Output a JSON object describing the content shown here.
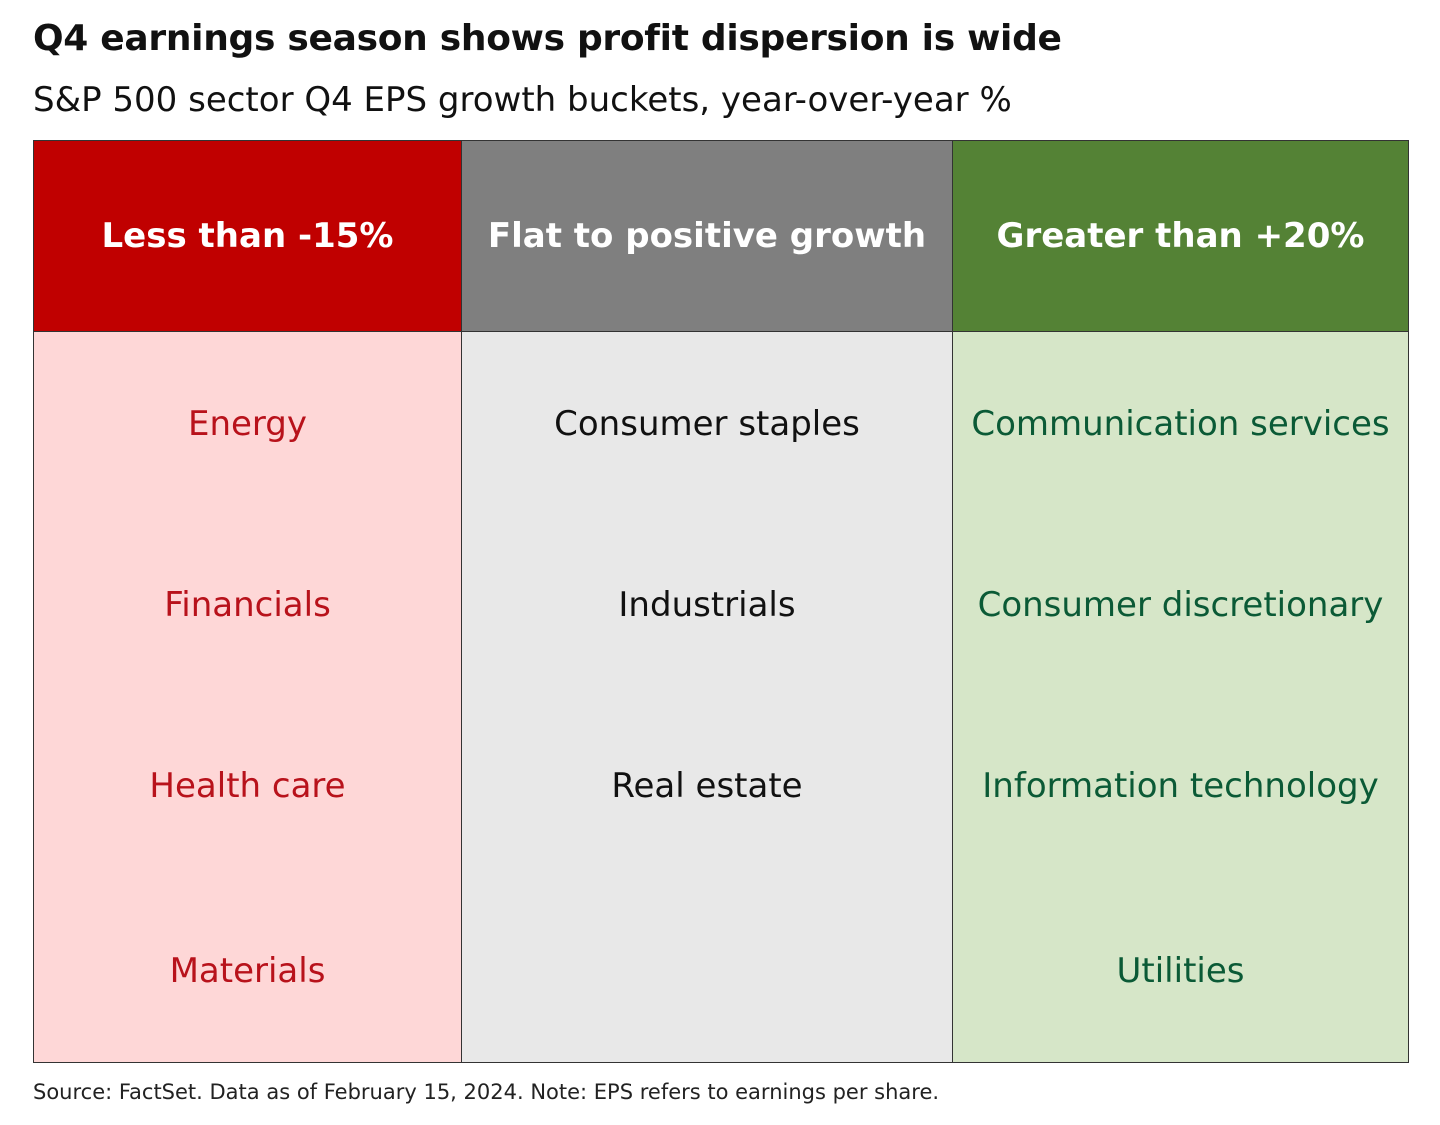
{
  "title": "Q4 earnings season shows profit dispersion is wide",
  "subtitle": "S&P 500 sector Q4 EPS growth buckets, year-over-year %",
  "chart_data": {
    "type": "table",
    "columns": [
      {
        "header": "Less than -15%",
        "header_color": "#c00000",
        "body_color": "#fed7d7",
        "text_color": "#b8121b",
        "sectors": [
          "Energy",
          "Financials",
          "Health care",
          "Materials"
        ]
      },
      {
        "header": "Flat to positive growth",
        "header_color": "#7f7f7f",
        "body_color": "#e8e8e8",
        "text_color": "#111111",
        "sectors": [
          "Consumer staples",
          "Industrials",
          "Real estate"
        ]
      },
      {
        "header": "Greater than +20%",
        "header_color": "#548235",
        "body_color": "#d6e6c8",
        "text_color": "#0b5a36",
        "sectors": [
          "Communication services",
          "Consumer discretionary",
          "Information technology",
          "Utilities"
        ]
      }
    ]
  },
  "source": "Source: FactSet. Data as of February 15, 2024. Note: EPS refers to earnings per share."
}
